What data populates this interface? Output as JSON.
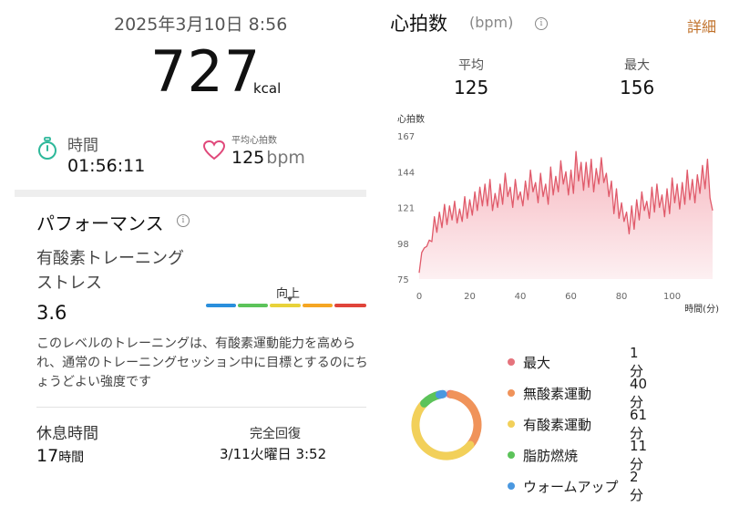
{
  "summary": {
    "datetime": "2025年3月10日 8:56",
    "calories_value": "727",
    "calories_unit": "kcal",
    "time_label": "時間",
    "time_value": "01:56:11",
    "avg_hr_label": "平均心拍数",
    "avg_hr_value": "125",
    "avg_hr_unit": "bpm"
  },
  "performance": {
    "title": "パフォーマンス",
    "metric_label_line1": "有酸素トレーニング",
    "metric_label_line2": "ストレス",
    "metric_value": "3.6",
    "scale_marker_label": "向上",
    "scale_marker_fraction": 0.55,
    "scale_colors": [
      "#2a8fdc",
      "#5cc35a",
      "#e8d23a",
      "#f5a623",
      "#e0443a"
    ],
    "description": "このレベルのトレーニングは、有酸素運動能力を高められ、通常のトレーニングセッション中に目標とするのにちょうどよい強度です"
  },
  "recovery": {
    "rest_label": "休息時間",
    "rest_value": "17",
    "rest_unit": "時間",
    "full_recovery_label": "完全回復",
    "full_recovery_value": "3/11火曜日 3:52"
  },
  "heart_rate": {
    "title": "心拍数",
    "unit": "(bpm)",
    "details_link": "詳細",
    "avg_label": "平均",
    "avg_value": "125",
    "max_label": "最大",
    "max_value": "156",
    "colors": {
      "accent": "#c0712a",
      "line": "#e05a6a",
      "fill_top": "#f6b8c0",
      "fill_bottom": "#fdf0f2"
    }
  },
  "chart_data": {
    "type": "area",
    "ylabel": "心拍数",
    "xlabel": "時間(分)",
    "yticks": [
      167,
      144,
      121,
      98,
      75
    ],
    "xticks": [
      0,
      20,
      40,
      60,
      80,
      100
    ],
    "ylim": [
      75,
      167
    ],
    "xlim": [
      0,
      116
    ],
    "grid": false,
    "x": [
      0,
      1,
      2,
      3,
      4,
      5,
      6,
      7,
      8,
      9,
      10,
      11,
      12,
      13,
      14,
      15,
      16,
      17,
      18,
      19,
      20,
      21,
      22,
      23,
      24,
      25,
      26,
      27,
      28,
      29,
      30,
      31,
      32,
      33,
      34,
      35,
      36,
      37,
      38,
      39,
      40,
      41,
      42,
      43,
      44,
      45,
      46,
      47,
      48,
      49,
      50,
      51,
      52,
      53,
      54,
      55,
      56,
      57,
      58,
      59,
      60,
      61,
      62,
      63,
      64,
      65,
      66,
      67,
      68,
      69,
      70,
      71,
      72,
      73,
      74,
      75,
      76,
      77,
      78,
      79,
      80,
      81,
      82,
      83,
      84,
      85,
      86,
      87,
      88,
      89,
      90,
      91,
      92,
      93,
      94,
      95,
      96,
      97,
      98,
      99,
      100,
      101,
      102,
      103,
      104,
      105,
      106,
      107,
      108,
      109,
      110,
      111,
      112,
      113,
      114,
      115,
      116
    ],
    "y": [
      79,
      92,
      95,
      96,
      100,
      99,
      115,
      105,
      118,
      108,
      123,
      110,
      122,
      113,
      125,
      111,
      120,
      112,
      128,
      114,
      126,
      116,
      131,
      119,
      134,
      122,
      136,
      122,
      139,
      119,
      130,
      121,
      136,
      123,
      143,
      128,
      134,
      121,
      139,
      126,
      131,
      122,
      138,
      126,
      145,
      131,
      137,
      124,
      143,
      128,
      136,
      123,
      147,
      129,
      141,
      131,
      151,
      136,
      144,
      129,
      145,
      130,
      157,
      138,
      150,
      132,
      150,
      134,
      152,
      131,
      146,
      136,
      153,
      137,
      143,
      128,
      138,
      117,
      133,
      114,
      124,
      112,
      118,
      104,
      122,
      107,
      126,
      113,
      131,
      119,
      125,
      114,
      134,
      118,
      136,
      121,
      129,
      115,
      133,
      117,
      140,
      124,
      136,
      120,
      137,
      123,
      145,
      126,
      139,
      124,
      142,
      130,
      148,
      133,
      152,
      127,
      119
    ]
  },
  "zones": {
    "items": [
      {
        "label": "最大",
        "value": "1分",
        "color": "#e5737c",
        "minutes": 1
      },
      {
        "label": "無酸素運動",
        "value": "40分",
        "color": "#f0935a",
        "minutes": 40
      },
      {
        "label": "有酸素運動",
        "value": "61分",
        "color": "#f2d05a",
        "minutes": 61
      },
      {
        "label": "脂肪燃焼",
        "value": "11分",
        "color": "#5cc35a",
        "minutes": 11
      },
      {
        "label": "ウォームアップ",
        "value": "2分",
        "color": "#4a98e0",
        "minutes": 2
      }
    ]
  }
}
